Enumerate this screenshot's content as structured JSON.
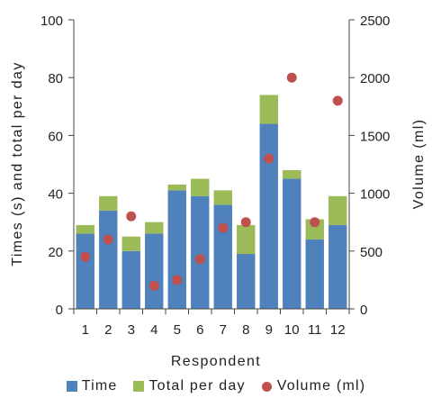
{
  "chart_data": {
    "type": "bar",
    "stacked": true,
    "categories": [
      "1",
      "2",
      "3",
      "4",
      "5",
      "6",
      "7",
      "8",
      "9",
      "10",
      "11",
      "12"
    ],
    "xlabel": "Respondent",
    "ylabel": "Times (s) and total per day",
    "y2label": "Volume (ml)",
    "ylim": [
      0,
      100
    ],
    "y2lim": [
      0,
      2500
    ],
    "yticks": [
      0,
      20,
      40,
      60,
      80,
      100
    ],
    "y2ticks": [
      0,
      500,
      1000,
      1500,
      2000,
      2500
    ],
    "legend_position": "bottom",
    "grid": false,
    "series": [
      {
        "name": "Time",
        "type": "bar",
        "axis": "left",
        "color": "#4f81bd",
        "values": [
          26,
          34,
          20,
          26,
          41,
          39,
          36,
          19,
          64,
          45,
          24,
          29
        ]
      },
      {
        "name": "Total per day",
        "type": "bar",
        "axis": "left",
        "color": "#9bbb59",
        "values": [
          3,
          5,
          5,
          4,
          2,
          6,
          5,
          10,
          10,
          3,
          7,
          10
        ]
      },
      {
        "name": "Volume (ml)",
        "type": "scatter",
        "axis": "right",
        "color": "#c0504d",
        "values": [
          450,
          600,
          800,
          200,
          250,
          430,
          700,
          750,
          1300,
          2000,
          750,
          1800
        ]
      }
    ]
  }
}
